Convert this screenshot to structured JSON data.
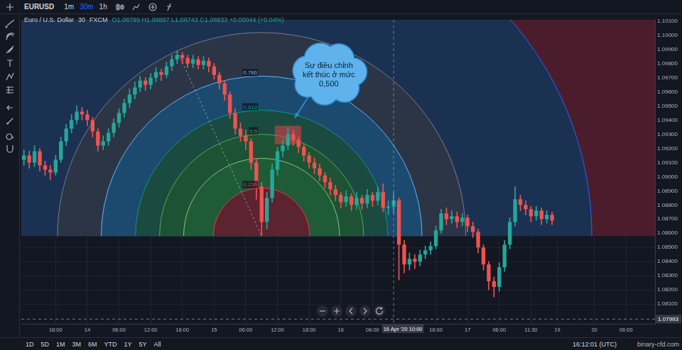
{
  "toolbar": {
    "symbol": "EURUSD",
    "intervals": [
      "1m",
      "30m",
      "1h"
    ],
    "active_interval": "30m"
  },
  "chart_data": {
    "type": "candlestick",
    "title": "Euro / U.S. Dollar",
    "interval": "30",
    "source": "FXCM",
    "ohlc_text": "O1.08789 H1.08887 L1.08743 C1.08833 +0.00044 (+0.04%)",
    "categories": [
      null,
      null,
      null,
      null,
      null,
      null,
      "18:00",
      null,
      null,
      null,
      null,
      null,
      "14",
      null,
      null,
      null,
      null,
      null,
      "06:00",
      null,
      null,
      null,
      null,
      null,
      "12:00",
      null,
      null,
      null,
      null,
      null,
      "18:00",
      null,
      null,
      null,
      null,
      null,
      "15",
      null,
      null,
      null,
      null,
      null,
      "06:00",
      null,
      null,
      null,
      null,
      null,
      "12:00",
      null,
      null,
      null,
      null,
      null,
      "18:00",
      null,
      null,
      null,
      null,
      null,
      "16",
      null,
      null,
      null,
      null,
      null,
      "06:00",
      null,
      null,
      null,
      null,
      null,
      null,
      null,
      null,
      null,
      null,
      null,
      "18:00",
      null,
      null,
      null,
      null,
      null,
      "17",
      null,
      null,
      null,
      null,
      null,
      "06:00",
      null,
      null,
      null,
      null,
      null,
      "11:30",
      null,
      null,
      null,
      null,
      "19",
      null,
      null,
      null,
      null,
      null,
      null,
      "20",
      null,
      null,
      null,
      null,
      null,
      "06:00",
      null,
      null,
      null,
      null,
      null
    ],
    "ohlc": [
      [
        1.0912,
        1.0919,
        1.0908,
        1.0915
      ],
      [
        1.0915,
        1.0918,
        1.0906,
        1.091
      ],
      [
        1.091,
        1.0922,
        1.0907,
        1.0918
      ],
      [
        1.0918,
        1.092,
        1.0904,
        1.0908
      ],
      [
        1.0908,
        1.0911,
        1.0901,
        1.0905
      ],
      [
        1.0905,
        1.0908,
        1.0898,
        1.0903
      ],
      [
        1.0903,
        1.0915,
        1.0901,
        1.0912
      ],
      [
        1.0912,
        1.0928,
        1.091,
        1.0925
      ],
      [
        1.0925,
        1.0937,
        1.0922,
        1.0934
      ],
      [
        1.0934,
        1.0944,
        1.0931,
        1.094
      ],
      [
        1.094,
        1.095,
        1.0937,
        1.0946
      ],
      [
        1.0946,
        1.0949,
        1.094,
        1.0944
      ],
      [
        1.0944,
        1.0947,
        1.0936,
        1.094
      ],
      [
        1.094,
        1.0942,
        1.0928,
        1.0932
      ],
      [
        1.0932,
        1.0934,
        1.0918,
        1.0922
      ],
      [
        1.0922,
        1.0929,
        1.0919,
        1.0925
      ],
      [
        1.0925,
        1.0934,
        1.0922,
        1.0931
      ],
      [
        1.0931,
        1.0941,
        1.0928,
        1.0938
      ],
      [
        1.0938,
        1.0948,
        1.0935,
        1.0945
      ],
      [
        1.0945,
        1.0955,
        1.0942,
        1.0952
      ],
      [
        1.0952,
        1.0962,
        1.0949,
        1.0958
      ],
      [
        1.0958,
        1.0967,
        1.0955,
        1.0963
      ],
      [
        1.0963,
        1.0971,
        1.096,
        1.0968
      ],
      [
        1.0968,
        1.097,
        1.0961,
        1.0965
      ],
      [
        1.0965,
        1.0973,
        1.0962,
        1.097
      ],
      [
        1.097,
        1.0977,
        1.0967,
        1.0974
      ],
      [
        1.0974,
        1.0976,
        1.0968,
        1.0972
      ],
      [
        1.0972,
        1.0981,
        1.097,
        1.0978
      ],
      [
        1.0978,
        1.0986,
        1.0975,
        1.0983
      ],
      [
        1.0983,
        1.0989,
        1.098,
        1.0986
      ],
      [
        1.0986,
        1.0988,
        1.098,
        1.0984
      ],
      [
        1.0984,
        1.0986,
        1.0977,
        1.098
      ],
      [
        1.098,
        1.0986,
        1.0977,
        1.0983
      ],
      [
        1.0983,
        1.0985,
        1.0976,
        1.0979
      ],
      [
        1.0979,
        1.0985,
        1.0976,
        1.0982
      ],
      [
        1.0982,
        1.0984,
        1.0974,
        1.0978
      ],
      [
        1.0978,
        1.098,
        1.0969,
        1.0972
      ],
      [
        1.0972,
        1.0974,
        1.0962,
        1.0966
      ],
      [
        1.0966,
        1.0968,
        1.0954,
        1.0958
      ],
      [
        1.0958,
        1.096,
        1.0941,
        1.0945
      ],
      [
        1.0945,
        1.0948,
        1.093,
        1.0934
      ],
      [
        1.0934,
        1.0938,
        1.0925,
        1.0929
      ],
      [
        1.0929,
        1.0933,
        1.0919,
        1.0925
      ],
      [
        1.0925,
        1.0927,
        1.0905,
        1.091
      ],
      [
        1.091,
        1.0913,
        1.0884,
        1.0893
      ],
      [
        1.0893,
        1.0896,
        1.0858,
        1.0868
      ],
      [
        1.0868,
        1.0889,
        1.0863,
        1.0885
      ],
      [
        1.0885,
        1.0909,
        1.0882,
        1.0905
      ],
      [
        1.0905,
        1.0921,
        1.0901,
        1.0918
      ],
      [
        1.0918,
        1.0926,
        1.0914,
        1.0922
      ],
      [
        1.0922,
        1.0935,
        1.0919,
        1.093
      ],
      [
        1.093,
        1.0933,
        1.0922,
        1.0926
      ],
      [
        1.0926,
        1.0928,
        1.0917,
        1.0921
      ],
      [
        1.0921,
        1.0923,
        1.0911,
        1.0915
      ],
      [
        1.0915,
        1.0917,
        1.0906,
        1.091
      ],
      [
        1.091,
        1.0913,
        1.0902,
        1.0906
      ],
      [
        1.0906,
        1.0909,
        1.0897,
        1.0901
      ],
      [
        1.0901,
        1.0903,
        1.0892,
        1.0896
      ],
      [
        1.0896,
        1.0899,
        1.0887,
        1.0891
      ],
      [
        1.0891,
        1.0894,
        1.0883,
        1.0887
      ],
      [
        1.0887,
        1.0889,
        1.0878,
        1.0882
      ],
      [
        1.0882,
        1.089,
        1.0879,
        1.0886
      ],
      [
        1.0886,
        1.0888,
        1.0876,
        1.088
      ],
      [
        1.088,
        1.0889,
        1.0877,
        1.0885
      ],
      [
        1.0885,
        1.0887,
        1.0877,
        1.0881
      ],
      [
        1.0881,
        1.0891,
        1.0878,
        1.0887
      ],
      [
        1.0887,
        1.0889,
        1.0879,
        1.0883
      ],
      [
        1.0883,
        1.0893,
        1.088,
        1.0889
      ],
      [
        1.0889,
        1.0895,
        1.0875,
        1.0878
      ],
      [
        1.0878,
        1.0883,
        1.0873,
        1.08789
      ],
      [
        1.08789,
        1.08887,
        1.08743,
        1.08833
      ],
      [
        1.08833,
        1.0885,
        1.0827,
        1.0852
      ],
      [
        1.0852,
        1.0855,
        1.0832,
        1.0838
      ],
      [
        1.0838,
        1.0846,
        1.0834,
        1.0842
      ],
      [
        1.0842,
        1.0845,
        1.0835,
        1.084
      ],
      [
        1.084,
        1.0848,
        1.0837,
        1.0845
      ],
      [
        1.0845,
        1.0851,
        1.0842,
        1.0848
      ],
      [
        1.0848,
        1.0854,
        1.0845,
        1.0851
      ],
      [
        1.0851,
        1.0865,
        1.0849,
        1.0862
      ],
      [
        1.0862,
        1.0877,
        1.086,
        1.0874
      ],
      [
        1.0874,
        1.0878,
        1.0866,
        1.087
      ],
      [
        1.087,
        1.0876,
        1.0867,
        1.0872
      ],
      [
        1.0872,
        1.0875,
        1.0864,
        1.0868
      ],
      [
        1.0868,
        1.0874,
        1.0865,
        1.0871
      ],
      [
        1.0871,
        1.0873,
        1.0861,
        1.0865
      ],
      [
        1.0865,
        1.0868,
        1.0857,
        1.0861
      ],
      [
        1.0861,
        1.0863,
        1.0846,
        1.085
      ],
      [
        1.085,
        1.0852,
        1.0834,
        1.0838
      ],
      [
        1.0838,
        1.084,
        1.082,
        1.0826
      ],
      [
        1.0826,
        1.0829,
        1.0815,
        1.0822
      ],
      [
        1.0822,
        1.0839,
        1.0819,
        1.0836
      ],
      [
        1.0836,
        1.0855,
        1.0833,
        1.0852
      ],
      [
        1.0852,
        1.0871,
        1.0849,
        1.0868
      ],
      [
        1.0868,
        1.0893,
        1.0865,
        1.0884
      ],
      [
        1.0884,
        1.0887,
        1.0876,
        1.088
      ],
      [
        1.088,
        1.0883,
        1.0873,
        1.0877
      ],
      [
        1.0877,
        1.0879,
        1.0868,
        1.0872
      ],
      [
        1.0872,
        1.0879,
        1.0869,
        1.0876
      ],
      [
        1.0876,
        1.0878,
        1.0866,
        1.087
      ],
      [
        1.087,
        1.0876,
        1.0867,
        1.0873
      ],
      [
        1.0873,
        1.0875,
        1.0866,
        1.0869
      ],
      null,
      null,
      null,
      null,
      null,
      null,
      null,
      null,
      null,
      null,
      null,
      null,
      null,
      null,
      null,
      null,
      null,
      null,
      null
    ],
    "ylim": [
      1.0796,
      1.1011
    ],
    "yticks": [
      {
        "value": 1.081,
        "label": "1.08100"
      },
      {
        "value": 1.082,
        "label": "1.08200"
      },
      {
        "value": 1.083,
        "label": "1.08300"
      },
      {
        "value": 1.084,
        "label": "1.08400"
      },
      {
        "value": 1.085,
        "label": "1.08500"
      },
      {
        "value": 1.086,
        "label": "1.08600"
      },
      {
        "value": 1.087,
        "label": "1.08700"
      },
      {
        "value": 1.088,
        "label": "1.08800"
      },
      {
        "value": 1.089,
        "label": "1.08900"
      },
      {
        "value": 1.09,
        "label": "1.09000"
      },
      {
        "value": 1.091,
        "label": "1.09100"
      },
      {
        "value": 1.092,
        "label": "1.09200"
      },
      {
        "value": 1.093,
        "label": "1.09300"
      },
      {
        "value": 1.094,
        "label": "1.09400"
      },
      {
        "value": 1.095,
        "label": "1.09500"
      },
      {
        "value": 1.096,
        "label": "1.09600"
      },
      {
        "value": 1.097,
        "label": "1.09700"
      },
      {
        "value": 1.098,
        "label": "1.09800"
      },
      {
        "value": 1.099,
        "label": "1.09900"
      },
      {
        "value": 1.1,
        "label": "1.10000"
      },
      {
        "value": 1.101,
        "label": "1.10100"
      }
    ],
    "grid": true,
    "crosshair": {
      "x": 70,
      "x_label": "16 Apr '20 10:00",
      "y": 1.07993,
      "y_label": "1.07993"
    },
    "fib_arcs": {
      "start": {
        "x": 29,
        "y": 1.0989
      },
      "end": {
        "x": 45,
        "y": 1.0858
      },
      "levels": [
        {
          "value": 0.236,
          "label": "0.236"
        },
        {
          "value": 0.382
        },
        {
          "value": 0.5,
          "label": "0.5"
        },
        {
          "value": 0.618,
          "label": "0.618"
        },
        {
          "value": 0.786,
          "label": "0.786"
        },
        {
          "value": 1
        },
        {
          "value": 1.618
        }
      ]
    },
    "highlight": {
      "x": [
        48,
        52
      ],
      "y": [
        1.0923,
        1.0936
      ]
    },
    "annotation": {
      "text": "Sự điều chỉnh kết thúc ở mức 0,500",
      "x": 51,
      "y": 1.094
    }
  },
  "bottom_bar": {
    "ranges": [
      "1D",
      "5D",
      "1M",
      "3M",
      "6M",
      "YTD",
      "1Y",
      "5Y",
      "All"
    ],
    "clock": "16:12:01 (UTC)"
  },
  "watermark": "binary-cfd.com"
}
